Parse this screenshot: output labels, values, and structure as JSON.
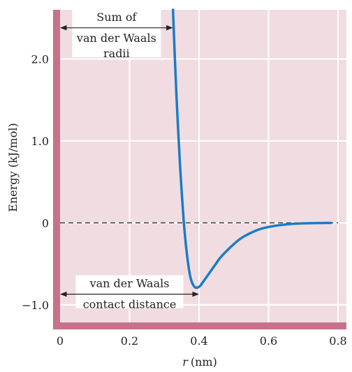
{
  "chart_data": {
    "type": "line",
    "title": "",
    "xlabel_var": "r",
    "xlabel_unit": "(nm)",
    "ylabel": "Energy (kJ/mol)",
    "xlim": [
      0,
      0.8
    ],
    "ylim": [
      -1.3,
      2.6
    ],
    "x_ticks": [
      {
        "value": 0,
        "label": "0"
      },
      {
        "value": 0.2,
        "label": "0.2"
      },
      {
        "value": 0.4,
        "label": "0.4"
      },
      {
        "value": 0.6,
        "label": "0.6"
      },
      {
        "value": 0.8,
        "label": "0.8"
      }
    ],
    "y_ticks": [
      {
        "value": 2.0,
        "label": "2.0"
      },
      {
        "value": 1.0,
        "label": "1.0"
      },
      {
        "value": 0,
        "label": "0"
      },
      {
        "value": -1.0,
        "label": "−1.0"
      }
    ],
    "grid": true,
    "series": [
      {
        "color": "#1a7cc7",
        "x": [
          0.325,
          0.33,
          0.335,
          0.34,
          0.345,
          0.35,
          0.355,
          0.36,
          0.365,
          0.37,
          0.375,
          0.38,
          0.385,
          0.39,
          0.395,
          0.4,
          0.405,
          0.41,
          0.42,
          0.43,
          0.44,
          0.45,
          0.46,
          0.48,
          0.5,
          0.52,
          0.55,
          0.58,
          0.62,
          0.66,
          0.7,
          0.74,
          0.78
        ],
        "y": [
          2.6,
          2.05,
          1.55,
          1.12,
          0.72,
          0.38,
          0.07,
          -0.18,
          -0.38,
          -0.54,
          -0.66,
          -0.73,
          -0.77,
          -0.79,
          -0.79,
          -0.78,
          -0.76,
          -0.73,
          -0.67,
          -0.61,
          -0.55,
          -0.49,
          -0.43,
          -0.34,
          -0.26,
          -0.19,
          -0.12,
          -0.07,
          -0.035,
          -0.015,
          -0.006,
          -0.002,
          0
        ]
      }
    ],
    "reference_lines": [
      {
        "y": 0,
        "style": "dashed"
      }
    ],
    "annotations": [
      {
        "name": "sum-of-radii",
        "lines": [
          "Sum of",
          "van der Waals",
          "radii"
        ],
        "arrow_y": 2.38,
        "from_x": 0,
        "to_x": 0.325
      },
      {
        "name": "contact-distance",
        "lines": [
          "van der Waals",
          "contact distance"
        ],
        "arrow_y": -0.87,
        "from_x": 0,
        "to_x": 0.4
      }
    ]
  },
  "colors": {
    "plot_background": "#f1dde1",
    "axis_band": "#c6728a",
    "grid": "#ffffff",
    "curve": "#1a7cc7",
    "text": "#222222"
  }
}
